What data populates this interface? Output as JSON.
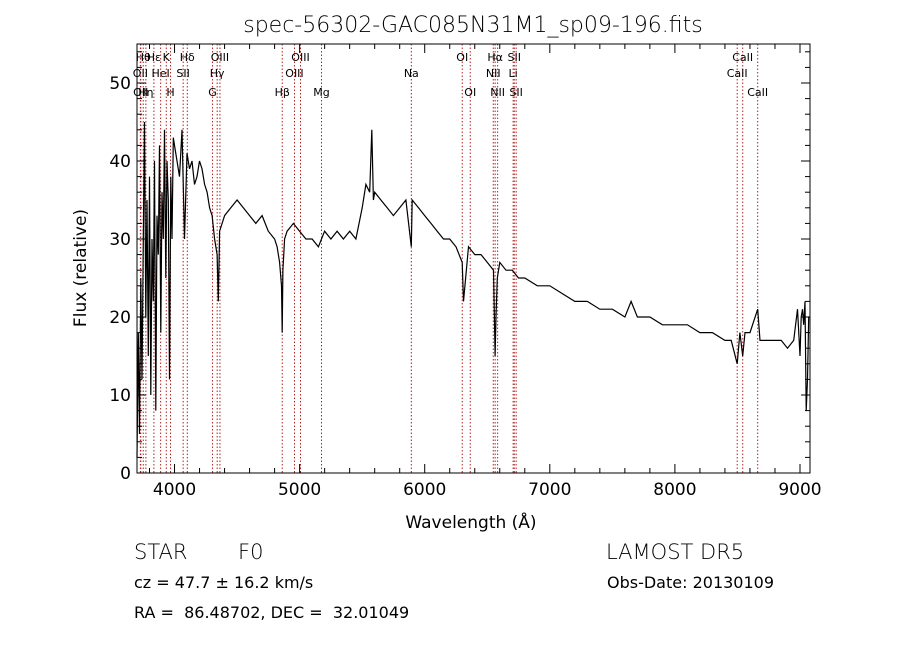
{
  "chart_data": {
    "type": "line",
    "title": "spec-56302-GAC085N31M1_sp09-196.fits",
    "xlabel": "Wavelength (Å)",
    "ylabel": "Flux (relative)",
    "xlim": [
      3700,
      9080
    ],
    "ylim": [
      0,
      55
    ],
    "xticks": [
      4000,
      5000,
      6000,
      7000,
      8000,
      9000
    ],
    "yticks": [
      0,
      10,
      20,
      30,
      40,
      50
    ],
    "line_color": "#000000",
    "marker_color": "#b22222",
    "series": [
      {
        "x": [
          3700,
          3710,
          3720,
          3730,
          3740,
          3750,
          3760,
          3770,
          3780,
          3790,
          3800,
          3810,
          3820,
          3830,
          3840,
          3850,
          3860,
          3870,
          3880,
          3890,
          3900,
          3910,
          3920,
          3930,
          3940,
          3950,
          3960,
          3970,
          3980,
          3990,
          4000,
          4020,
          4040,
          4060,
          4080,
          4100,
          4120,
          4140,
          4160,
          4180,
          4200,
          4220,
          4240,
          4260,
          4280,
          4300,
          4320,
          4340,
          4350,
          4360,
          4380,
          4400,
          4450,
          4500,
          4550,
          4600,
          4650,
          4700,
          4750,
          4800,
          4820,
          4840,
          4855,
          4861,
          4866,
          4880,
          4900,
          4950,
          5000,
          5050,
          5100,
          5150,
          5200,
          5250,
          5300,
          5350,
          5400,
          5450,
          5500,
          5530,
          5560,
          5577,
          5590,
          5600,
          5650,
          5700,
          5750,
          5800,
          5850,
          5893,
          5900,
          5950,
          6000,
          6050,
          6100,
          6150,
          6200,
          6250,
          6300,
          6310,
          6350,
          6400,
          6450,
          6500,
          6550,
          6555,
          6563,
          6570,
          6580,
          6600,
          6650,
          6700,
          6750,
          6800,
          6900,
          7000,
          7100,
          7200,
          7300,
          7400,
          7500,
          7600,
          7650,
          7700,
          7800,
          7900,
          8000,
          8100,
          8200,
          8300,
          8400,
          8450,
          8498,
          8520,
          8542,
          8560,
          8600,
          8662,
          8680,
          8750,
          8800,
          8850,
          8900,
          8950,
          8980,
          9000,
          9010,
          9020,
          9030,
          9040,
          9050,
          9060,
          9070,
          9080
        ],
        "values": [
          2,
          18,
          5,
          25,
          12,
          30,
          45,
          20,
          35,
          15,
          38,
          10,
          30,
          22,
          40,
          8,
          33,
          28,
          42,
          18,
          36,
          30,
          44,
          25,
          40,
          35,
          12,
          38,
          30,
          43,
          42,
          40,
          38,
          44,
          30,
          41,
          39,
          40,
          37,
          38,
          40,
          39,
          37,
          36,
          34,
          33,
          30,
          28,
          22,
          31,
          32,
          33,
          34,
          35,
          34,
          33,
          32,
          33,
          31,
          30,
          29,
          27,
          24,
          18,
          26,
          30,
          31,
          32,
          31,
          30,
          30,
          29,
          31,
          30,
          31,
          30,
          31,
          30,
          34,
          37,
          36,
          44,
          35,
          36,
          35,
          34,
          33,
          34,
          35,
          29,
          35,
          34,
          33,
          32,
          31,
          30,
          30,
          29,
          27,
          22,
          29,
          28,
          28,
          27,
          26,
          22,
          15,
          20,
          25,
          27,
          26,
          26,
          25,
          25,
          24,
          24,
          23,
          22,
          22,
          21,
          21,
          20,
          22,
          20,
          20,
          19,
          19,
          19,
          18,
          18,
          17,
          17,
          14,
          18,
          15,
          18,
          18,
          21,
          17,
          17,
          17,
          17,
          16,
          17,
          21,
          15,
          20,
          21,
          19,
          22,
          8,
          12,
          20,
          20
        ]
      }
    ],
    "lines": [
      {
        "wl": 3727,
        "label": "OII",
        "row": 2
      },
      {
        "wl": 3730,
        "label": "OII",
        "row": 3
      },
      {
        "wl": 3750,
        "label": "Hθ",
        "row": 1
      },
      {
        "wl": 3771,
        "label": "Hη",
        "row": 3
      },
      {
        "wl": 3835,
        "label": "Hε",
        "row": 1
      },
      {
        "wl": 3889,
        "label": "HeI",
        "row": 2
      },
      {
        "wl": 3934,
        "label": "K",
        "row": 1
      },
      {
        "wl": 3968,
        "label": "H",
        "row": 3
      },
      {
        "wl": 4069,
        "label": "SII",
        "row": 2
      },
      {
        "wl": 4102,
        "label": "Hδ",
        "row": 1
      },
      {
        "wl": 4304,
        "label": "G",
        "row": 3
      },
      {
        "wl": 4341,
        "label": "Hγ",
        "row": 2
      },
      {
        "wl": 4363,
        "label": "OIII",
        "row": 1
      },
      {
        "wl": 4861,
        "label": "Hβ",
        "row": 3
      },
      {
        "wl": 4959,
        "label": "OIII",
        "row": 2
      },
      {
        "wl": 5007,
        "label": "OIII",
        "row": 1
      },
      {
        "wl": 5175,
        "label": "Mg",
        "row": 3
      },
      {
        "wl": 5893,
        "label": "Na",
        "row": 2
      },
      {
        "wl": 6300,
        "label": "OI",
        "row": 1
      },
      {
        "wl": 6364,
        "label": "OI",
        "row": 3
      },
      {
        "wl": 6548,
        "label": "NII",
        "row": 2
      },
      {
        "wl": 6563,
        "label": "Hα",
        "row": 1
      },
      {
        "wl": 6583,
        "label": "NII",
        "row": 3
      },
      {
        "wl": 6707,
        "label": "Li",
        "row": 2
      },
      {
        "wl": 6716,
        "label": "SII",
        "row": 1
      },
      {
        "wl": 6731,
        "label": "SII",
        "row": 3
      },
      {
        "wl": 8498,
        "label": "CaII",
        "row": 2
      },
      {
        "wl": 8542,
        "label": "CaII",
        "row": 1
      },
      {
        "wl": 8662,
        "label": "CaII",
        "row": 3
      }
    ]
  },
  "info": {
    "class": "STAR",
    "subclass": "F0",
    "survey": "LAMOST DR5",
    "cz": "cz = 47.7 ± 16.2 km/s",
    "obs_date": "Obs-Date: 20130109",
    "coords": "RA =  86.48702, DEC =  32.01049"
  }
}
